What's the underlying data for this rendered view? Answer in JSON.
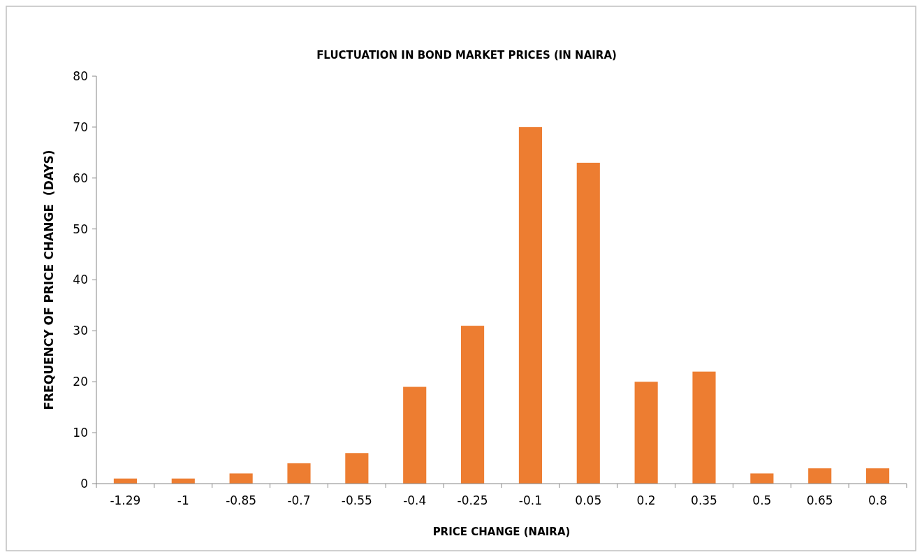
{
  "chart_data": {
    "type": "bar",
    "title": "FLUCTUATION IN BOND MARKET PRICES (IN NAIRA)",
    "xlabel": "PRICE CHANGE (NAIRA)",
    "ylabel": "FREQUENCY OF PRICE CHANGE  (DAYS)",
    "categories": [
      "-1.29",
      "-1",
      "-0.85",
      "-0.7",
      "-0.55",
      "-0.4",
      "-0.25",
      "-0.1",
      "0.05",
      "0.2",
      "0.35",
      "0.5",
      "0.65",
      "0.8"
    ],
    "values": [
      1,
      1,
      2,
      4,
      6,
      19,
      31,
      70,
      63,
      20,
      22,
      2,
      3,
      3
    ],
    "color": "#ed7d31",
    "ylim": [
      0,
      80
    ],
    "yticks": [
      0,
      10,
      20,
      30,
      40,
      50,
      60,
      70,
      80
    ],
    "grid": false
  }
}
